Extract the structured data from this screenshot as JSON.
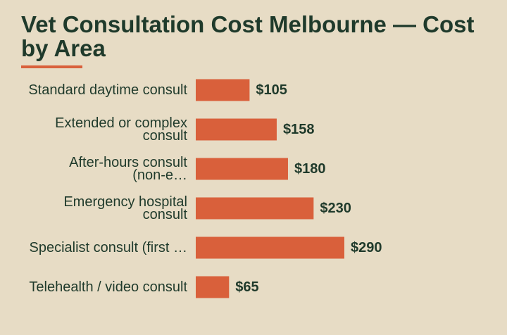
{
  "colors": {
    "background": "#e7dcc5",
    "bar": "#d9603b",
    "text": "#1f3a2b"
  },
  "chart_data": {
    "type": "bar",
    "orientation": "horizontal",
    "title": "Vet Consultation Cost Melbourne — Cost by Area",
    "categories": [
      [
        "Standard daytime consult"
      ],
      [
        "Extended or complex",
        "consult"
      ],
      [
        "After-hours consult",
        "(non-e…"
      ],
      [
        "Emergency hospital",
        "consult"
      ],
      [
        "Specialist consult (first …"
      ],
      [
        "Telehealth / video consult"
      ]
    ],
    "values": [
      105,
      158,
      180,
      230,
      290,
      65
    ],
    "value_labels": [
      "$105",
      "$158",
      "$180",
      "$230",
      "$290",
      "$65"
    ],
    "xlim": [
      0,
      290
    ],
    "grid": false,
    "legend": "none"
  }
}
